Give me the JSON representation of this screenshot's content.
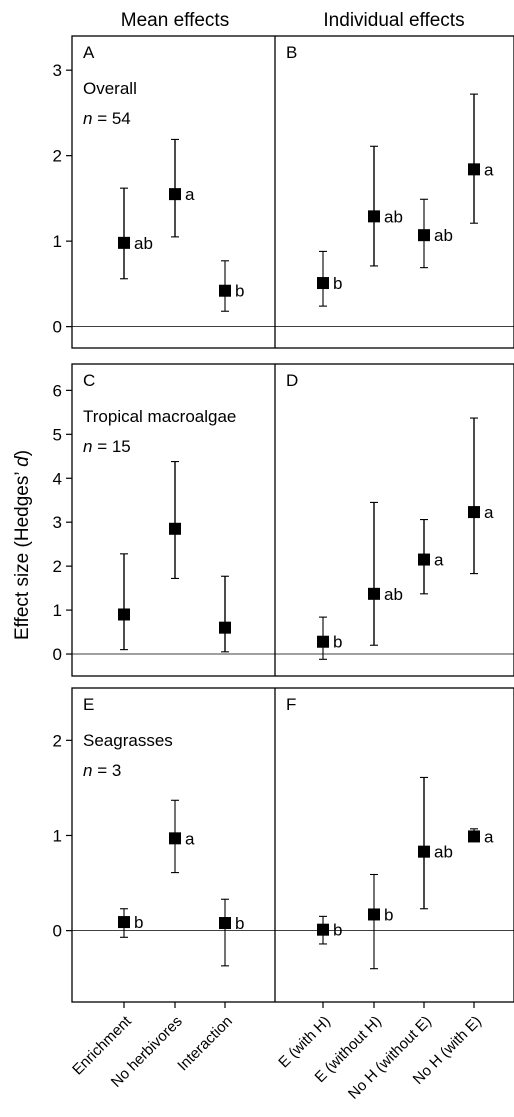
{
  "figure": {
    "col_titles": [
      "Mean effects",
      "Individual effects"
    ],
    "ylabel_main": "Effect size (Hedges’ ",
    "ylabel_italic": "d",
    "ylabel_close": ")",
    "x_tick_labels": [
      "Enrichment",
      "No herbivores",
      "Interaction",
      "E (with H)",
      "E (without H)",
      "No H (without E)",
      "No H (with E)"
    ]
  },
  "chart_data": [
    {
      "type": "scatter",
      "row": "top",
      "rows_title": "Overall",
      "n_label": "n = 54",
      "n_italic": "n",
      "n_rest": " = 54",
      "ylim": [
        -0.25,
        3.4
      ],
      "yticks": [
        0,
        1,
        2,
        3
      ],
      "panels": [
        {
          "letter": "A",
          "categories": [
            "Enrichment",
            "No herbivores",
            "Interaction"
          ],
          "values": [
            0.98,
            1.55,
            0.42
          ],
          "ci_low": [
            0.56,
            1.05,
            0.18
          ],
          "ci_high": [
            1.62,
            2.19,
            0.77
          ],
          "labels": [
            "ab",
            "a",
            "b"
          ]
        },
        {
          "letter": "B",
          "categories": [
            "E (with H)",
            "E (without H)",
            "No H (without E)",
            "No H (with E)"
          ],
          "values": [
            0.51,
            1.29,
            1.07,
            1.84
          ],
          "ci_low": [
            0.24,
            0.71,
            0.69,
            1.21
          ],
          "ci_high": [
            0.88,
            2.11,
            1.49,
            2.72
          ],
          "labels": [
            "b",
            "ab",
            "ab",
            "a"
          ]
        }
      ]
    },
    {
      "type": "scatter",
      "row": "middle",
      "rows_title": "Tropical macroalgae",
      "n_label": "n = 15",
      "n_italic": "n",
      "n_rest": " = 15",
      "ylim": [
        -0.5,
        6.6
      ],
      "yticks": [
        0,
        1,
        2,
        3,
        4,
        5,
        6
      ],
      "panels": [
        {
          "letter": "C",
          "categories": [
            "Enrichment",
            "No herbivores",
            "Interaction"
          ],
          "values": [
            0.9,
            2.85,
            0.6
          ],
          "ci_low": [
            0.1,
            1.72,
            0.05
          ],
          "ci_high": [
            2.28,
            4.38,
            1.77
          ],
          "labels": [
            "",
            "",
            ""
          ]
        },
        {
          "letter": "D",
          "categories": [
            "E (with H)",
            "E (without H)",
            "No H (without E)",
            "No H (with E)"
          ],
          "values": [
            0.28,
            1.37,
            2.15,
            3.23
          ],
          "ci_low": [
            -0.12,
            0.2,
            1.37,
            1.83
          ],
          "ci_high": [
            0.84,
            3.45,
            3.06,
            5.37
          ],
          "labels": [
            "b",
            "ab",
            "a",
            "a"
          ]
        }
      ]
    },
    {
      "type": "scatter",
      "row": "bottom",
      "rows_title": "Seagrasses",
      "n_label": "n = 3",
      "n_italic": "n",
      "n_rest": " = 3",
      "ylim": [
        -0.75,
        2.55
      ],
      "yticks": [
        0,
        1,
        2
      ],
      "panels": [
        {
          "letter": "E",
          "categories": [
            "Enrichment",
            "No herbivores",
            "Interaction"
          ],
          "values": [
            0.09,
            0.97,
            0.08
          ],
          "ci_low": [
            -0.07,
            0.61,
            -0.37
          ],
          "ci_high": [
            0.23,
            1.37,
            0.33
          ],
          "labels": [
            "b",
            "a",
            "b"
          ]
        },
        {
          "letter": "F",
          "categories": [
            "E (with H)",
            "E (without H)",
            "No H (without E)",
            "No H (with E)"
          ],
          "values": [
            0.01,
            0.17,
            0.83,
            0.99
          ],
          "ci_low": [
            -0.14,
            -0.4,
            0.23,
            0.94
          ],
          "ci_high": [
            0.15,
            0.59,
            1.61,
            1.07
          ],
          "labels": [
            "b",
            "b",
            "ab",
            "a"
          ]
        }
      ]
    }
  ]
}
